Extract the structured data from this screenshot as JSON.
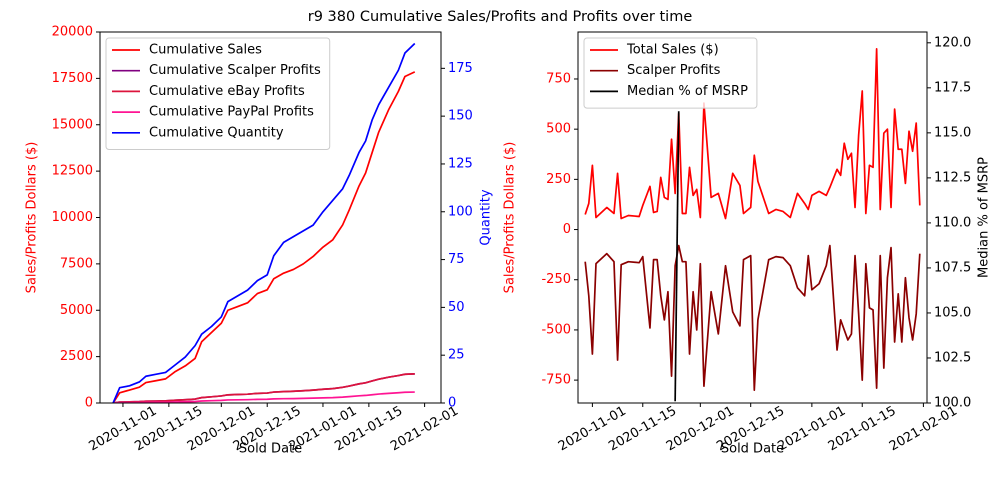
{
  "title": "r9 380 Cumulative Sales/Profits and Profits over time",
  "chart_data": [
    {
      "type": "line",
      "xlabel": "Sold Date",
      "ylabel": "Sales/Profits Dollars ($)",
      "y2label": "Quantity",
      "y_color": "red",
      "y2_color": "blue",
      "legend": "upper left",
      "xlim": [
        "2020-10-25",
        "2021-02-06"
      ],
      "xticks": [
        "2020-11-01",
        "2020-11-15",
        "2020-12-01",
        "2020-12-15",
        "2021-01-01",
        "2021-01-15",
        "2021-02-01"
      ],
      "ylim": [
        0,
        20000
      ],
      "yticks": [
        0,
        2500,
        5000,
        7500,
        10000,
        12500,
        15000,
        17500,
        20000
      ],
      "y2lim": [
        0,
        194
      ],
      "y2ticks": [
        0,
        25,
        50,
        75,
        100,
        125,
        150,
        175
      ],
      "x": [
        "2020-10-29",
        "2020-10-31",
        "2020-11-03",
        "2020-11-06",
        "2020-11-08",
        "2020-11-11",
        "2020-11-14",
        "2020-11-17",
        "2020-11-20",
        "2020-11-23",
        "2020-11-25",
        "2020-11-28",
        "2020-12-01",
        "2020-12-03",
        "2020-12-06",
        "2020-12-09",
        "2020-12-12",
        "2020-12-15",
        "2020-12-17",
        "2020-12-20",
        "2020-12-23",
        "2020-12-26",
        "2020-12-29",
        "2021-01-01",
        "2021-01-04",
        "2021-01-07",
        "2021-01-09",
        "2021-01-12",
        "2021-01-14",
        "2021-01-16",
        "2021-01-18",
        "2021-01-21",
        "2021-01-24",
        "2021-01-26",
        "2021-01-29"
      ],
      "series": [
        {
          "name": "Cumulative Sales",
          "color": "red",
          "values": [
            0,
            550,
            700,
            850,
            1100,
            1200,
            1300,
            1700,
            2000,
            2400,
            3300,
            3800,
            4300,
            5000,
            5200,
            5400,
            5900,
            6100,
            6700,
            7000,
            7200,
            7500,
            7900,
            8400,
            8800,
            9600,
            10400,
            11700,
            12400,
            13500,
            14600,
            15800,
            16800,
            17600,
            17850
          ]
        },
        {
          "name": "Cumulative Scalper Profits",
          "color": "purple",
          "values": [
            0,
            50,
            60,
            75,
            95,
            105,
            115,
            150,
            175,
            210,
            290,
            335,
            380,
            440,
            460,
            475,
            520,
            535,
            590,
            615,
            635,
            660,
            695,
            740,
            775,
            845,
            915,
            1030,
            1090,
            1190,
            1285,
            1390,
            1480,
            1550,
            1570
          ]
        },
        {
          "name": "Cumulative eBay Profits",
          "color": "crimson",
          "values": [
            0,
            50,
            60,
            75,
            95,
            105,
            115,
            150,
            175,
            210,
            290,
            335,
            380,
            440,
            460,
            475,
            520,
            535,
            590,
            615,
            635,
            660,
            695,
            740,
            775,
            845,
            915,
            1030,
            1090,
            1190,
            1285,
            1390,
            1480,
            1550,
            1570
          ]
        },
        {
          "name": "Cumulative PayPal Profits",
          "color": "deeppink",
          "values": [
            0,
            18,
            23,
            28,
            36,
            40,
            43,
            56,
            66,
            79,
            109,
            125,
            142,
            165,
            172,
            178,
            195,
            201,
            221,
            231,
            238,
            248,
            261,
            277,
            290,
            317,
            343,
            386,
            409,
            446,
            482,
            521,
            554,
            581,
            589
          ]
        },
        {
          "name": "Cumulative Quantity",
          "color": "blue",
          "axis": "y2",
          "values": [
            0,
            8,
            9,
            11,
            14,
            15,
            16,
            20,
            24,
            30,
            36,
            40,
            45,
            53,
            56,
            59,
            64,
            67,
            77,
            84,
            87,
            90,
            93,
            100,
            106,
            112,
            119,
            131,
            137,
            148,
            156,
            165,
            174,
            183,
            188
          ]
        }
      ]
    },
    {
      "type": "line",
      "xlabel": "Sold Date",
      "ylabel": "Sales/Profits Dollars ($)",
      "y2label": "Median % of MSRP",
      "y_color": "red",
      "y2_color": "black",
      "legend": "upper left",
      "xlim": [
        "2020-10-28",
        "2021-02-02"
      ],
      "xticks": [
        "2020-11-01",
        "2020-11-15",
        "2020-12-01",
        "2020-12-15",
        "2021-01-01",
        "2021-01-15",
        "2021-02-01"
      ],
      "ylim": [
        -864,
        984
      ],
      "yticks": [
        -750,
        -500,
        -250,
        0,
        250,
        500,
        750
      ],
      "y2lim": [
        100,
        120.6
      ],
      "y2ticks": [
        {
          "value": 100,
          "label": "100.0"
        },
        {
          "value": 102.5,
          "label": "102.5"
        },
        {
          "value": 105,
          "label": "105.0"
        },
        {
          "value": 107.5,
          "label": "107.5"
        },
        {
          "value": 110,
          "label": "110.0"
        },
        {
          "value": 112.5,
          "label": "112.5"
        },
        {
          "value": 115,
          "label": "115.0"
        },
        {
          "value": 117.5,
          "label": "117.5"
        },
        {
          "value": 120,
          "label": "120.0"
        }
      ],
      "x": [
        "2020-10-30",
        "2020-10-31",
        "2020-11-01",
        "2020-11-02",
        "2020-11-05",
        "2020-11-07",
        "2020-11-08",
        "2020-11-09",
        "2020-11-11",
        "2020-11-14",
        "2020-11-15",
        "2020-11-17",
        "2020-11-18",
        "2020-11-19",
        "2020-11-20",
        "2020-11-21",
        "2020-11-22",
        "2020-11-23",
        "2020-11-24",
        "2020-11-25",
        "2020-11-26",
        "2020-11-27",
        "2020-11-28",
        "2020-11-29",
        "2020-11-30",
        "2020-12-01",
        "2020-12-02",
        "2020-12-04",
        "2020-12-06",
        "2020-12-08",
        "2020-12-10",
        "2020-12-12",
        "2020-12-13",
        "2020-12-15",
        "2020-12-16",
        "2020-12-17",
        "2020-12-20",
        "2020-12-22",
        "2020-12-24",
        "2020-12-26",
        "2020-12-28",
        "2020-12-30",
        "2020-12-31",
        "2021-01-01",
        "2021-01-03",
        "2021-01-05",
        "2021-01-06",
        "2021-01-08",
        "2021-01-09",
        "2021-01-10",
        "2021-01-11",
        "2021-01-12",
        "2021-01-13",
        "2021-01-14",
        "2021-01-15",
        "2021-01-16",
        "2021-01-17",
        "2021-01-18",
        "2021-01-19",
        "2021-01-20",
        "2021-01-21",
        "2021-01-22",
        "2021-01-23",
        "2021-01-24",
        "2021-01-25",
        "2021-01-26",
        "2021-01-27",
        "2021-01-28",
        "2021-01-29",
        "2021-01-30",
        "2021-01-31"
      ],
      "series": [
        {
          "name": "Total Sales ($)",
          "color": "red",
          "values": [
            75,
            130,
            320,
            60,
            110,
            80,
            280,
            55,
            70,
            65,
            120,
            215,
            85,
            90,
            260,
            160,
            150,
            450,
            180,
            580,
            80,
            80,
            310,
            170,
            200,
            60,
            630,
            160,
            180,
            55,
            280,
            220,
            80,
            110,
            370,
            240,
            80,
            100,
            90,
            60,
            180,
            130,
            100,
            170,
            190,
            170,
            210,
            300,
            270,
            430,
            350,
            380,
            110,
            470,
            690,
            80,
            320,
            310,
            900,
            100,
            480,
            500,
            110,
            600,
            400,
            400,
            230,
            490,
            390,
            530,
            120
          ]
        },
        {
          "name": "Scalper Profits",
          "color": "darkred",
          "values": [
            -160,
            -330,
            -620,
            -170,
            -120,
            -160,
            -650,
            -175,
            -160,
            -165,
            -135,
            -490,
            -150,
            -150,
            -330,
            -450,
            -310,
            -730,
            -180,
            -80,
            -160,
            -160,
            -620,
            -310,
            -500,
            -170,
            -780,
            -310,
            -520,
            -180,
            -410,
            -480,
            -150,
            -130,
            -800,
            -450,
            -150,
            -135,
            -140,
            -180,
            -290,
            -330,
            -130,
            -300,
            -270,
            -180,
            -80,
            -600,
            -450,
            -500,
            -550,
            -520,
            -130,
            -420,
            -750,
            -170,
            -390,
            -400,
            -790,
            -130,
            -690,
            -240,
            -90,
            -560,
            -320,
            -560,
            -240,
            -440,
            -550,
            -420,
            -120
          ]
        },
        {
          "name": "Median % of MSRP",
          "color": "black",
          "axis": "y2",
          "values": [
            null,
            null,
            null,
            null,
            null,
            null,
            null,
            null,
            null,
            null,
            null,
            null,
            null,
            null,
            null,
            null,
            null,
            null,
            100.1,
            116.2,
            null,
            null,
            null,
            null,
            null,
            null,
            null,
            null,
            null,
            null,
            null,
            null,
            null,
            null,
            null,
            null,
            null,
            null,
            null,
            null,
            null,
            null,
            null,
            null,
            null,
            null,
            null,
            null,
            null,
            null,
            null,
            null,
            null,
            null,
            null,
            null,
            null,
            null,
            null,
            null,
            null,
            null,
            null,
            null,
            null,
            null,
            null,
            null,
            null,
            null,
            null
          ]
        }
      ]
    }
  ]
}
